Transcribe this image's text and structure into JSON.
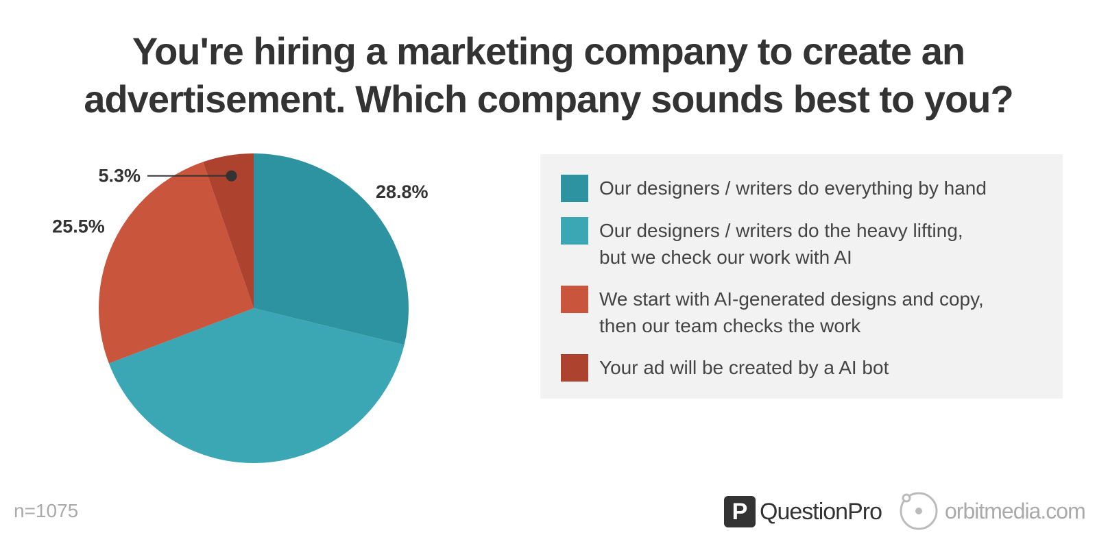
{
  "chart_data": {
    "type": "pie",
    "title_lines": [
      "You're hiring a marketing company to create an",
      "advertisement. Which company sounds best to you?"
    ],
    "slices": [
      {
        "label": "Our designers / writers do everything by hand",
        "value": 28.8,
        "value_label": "28.8%",
        "color": "#2e93a0"
      },
      {
        "label": "Our designers / writers do the heavy lifting,\nbut we check our work with AI",
        "value": 40.4,
        "value_label": "40.4%",
        "color": "#3ba6b4"
      },
      {
        "label": "We start with AI-generated designs and copy,\nthen our team checks the work",
        "value": 25.5,
        "value_label": "25.5%",
        "color": "#c9553d"
      },
      {
        "label": "Your ad will be created by a AI bot",
        "value": 5.3,
        "value_label": "5.3%",
        "color": "#ad422f"
      }
    ],
    "legend_placement": "right",
    "start_angle": "top",
    "direction": "clockwise"
  },
  "footnote": "n=1075",
  "logos": {
    "questionpro_mark": "P",
    "questionpro_text": "QuestionPro",
    "orbitmedia_text": "orbitmedia.com"
  }
}
